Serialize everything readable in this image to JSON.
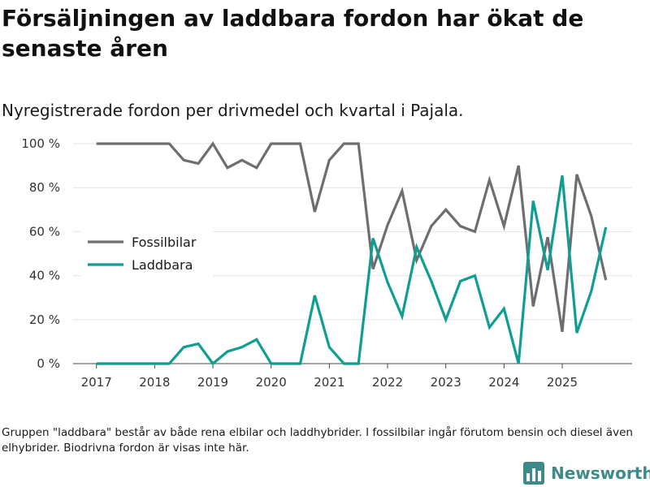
{
  "colors": {
    "fossil": "#6e6d72",
    "ev": "#0f9e91",
    "brand": "#3d8a8a",
    "grid": "#e6e6e6"
  },
  "brand": {
    "name": "Newsworthy",
    "icon": "bar-chart-logo-icon"
  },
  "footnote": "Gruppen \"laddbara\" består av både rena elbilar och laddhybrider. I fossilbilar ingår förutom bensin och diesel även elhybrider. Biodrivna fordon är visas inte här.",
  "chart_data": {
    "type": "line",
    "title": "Försäljningen av laddbara fordon har ökat de senaste åren",
    "subtitle": "Nyregistrerade fordon per drivmedel och kvartal i Pajala.",
    "xlabel": "",
    "ylabel": "",
    "ylim": [
      0,
      100
    ],
    "xlim": [
      2016.6,
      2026.2
    ],
    "yticks": [
      0,
      20,
      40,
      60,
      80,
      100
    ],
    "ytick_labels": [
      "0 %",
      "20 %",
      "40 %",
      "60 %",
      "80 %",
      "100 %"
    ],
    "xticks": [
      2017,
      2018,
      2019,
      2020,
      2021,
      2022,
      2023,
      2024,
      2025
    ],
    "xtick_labels": [
      "2017",
      "2018",
      "2019",
      "2020",
      "2021",
      "2022",
      "2023",
      "2024",
      "2025"
    ],
    "grid": true,
    "legend_position": "left-middle",
    "x": [
      2017,
      2017.25,
      2017.5,
      2017.75,
      2018,
      2018.25,
      2018.5,
      2018.75,
      2019,
      2019.25,
      2019.5,
      2019.75,
      2020,
      2020.25,
      2020.5,
      2020.75,
      2021,
      2021.25,
      2021.5,
      2021.75,
      2022,
      2022.25,
      2022.5,
      2022.75,
      2023,
      2023.25,
      2023.5,
      2023.75,
      2024,
      2024.25,
      2024.5,
      2024.75,
      2025,
      2025.25,
      2025.5,
      2025.75
    ],
    "series": [
      {
        "name": "Fossilbilar",
        "color": "#6e6d72",
        "values": [
          100,
          100,
          100,
          100,
          100,
          100,
          92.5,
          91,
          100,
          89,
          92.5,
          89,
          100,
          100,
          100,
          69,
          92.5,
          100,
          100,
          43,
          63,
          78.5,
          47,
          62.5,
          70,
          62.5,
          60,
          83.5,
          62.5,
          90,
          26,
          57.5,
          14.5,
          86,
          67,
          38
        ]
      },
      {
        "name": "Laddbara",
        "color": "#0f9e91",
        "values": [
          0,
          0,
          0,
          0,
          0,
          0,
          7.5,
          9,
          0,
          5.5,
          7.5,
          11,
          0,
          0,
          0,
          31,
          7.5,
          0,
          0,
          57,
          37,
          21.5,
          53,
          37.5,
          20,
          37.5,
          40,
          16.5,
          25,
          0,
          74,
          42.5,
          85.5,
          14,
          33,
          62
        ]
      }
    ]
  }
}
